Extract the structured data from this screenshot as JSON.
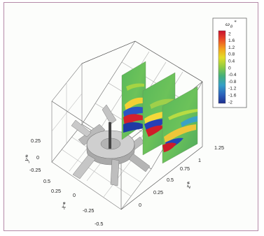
{
  "colorbar": {
    "title": "ω",
    "title_sub": "θ",
    "title_sup": "*",
    "levels": [
      "2",
      "1.6",
      "1.2",
      "0.8",
      "0.4",
      "0",
      "-0.4",
      "-0.8",
      "-1.2",
      "-1.6",
      "-2"
    ],
    "colors": [
      "#c8102e",
      "#e8472a",
      "#f28a1c",
      "#f5c41a",
      "#dde02a",
      "#a9d43c",
      "#66bd4e",
      "#3fae8e",
      "#3a9ad0",
      "#2f6fc2",
      "#1f3a9c"
    ]
  },
  "axes": {
    "y": {
      "label": "y*",
      "ticks": [
        "0.25",
        "0",
        "-0.25"
      ]
    },
    "x": {
      "label": "x*",
      "ticks": [
        "0.5",
        "0.25",
        "0",
        "-0.25",
        "-0.5"
      ]
    },
    "z": {
      "label": "z*",
      "ticks": [
        "0",
        "0.25",
        "0.5",
        "0.75",
        "1",
        "1.25"
      ]
    }
  }
}
